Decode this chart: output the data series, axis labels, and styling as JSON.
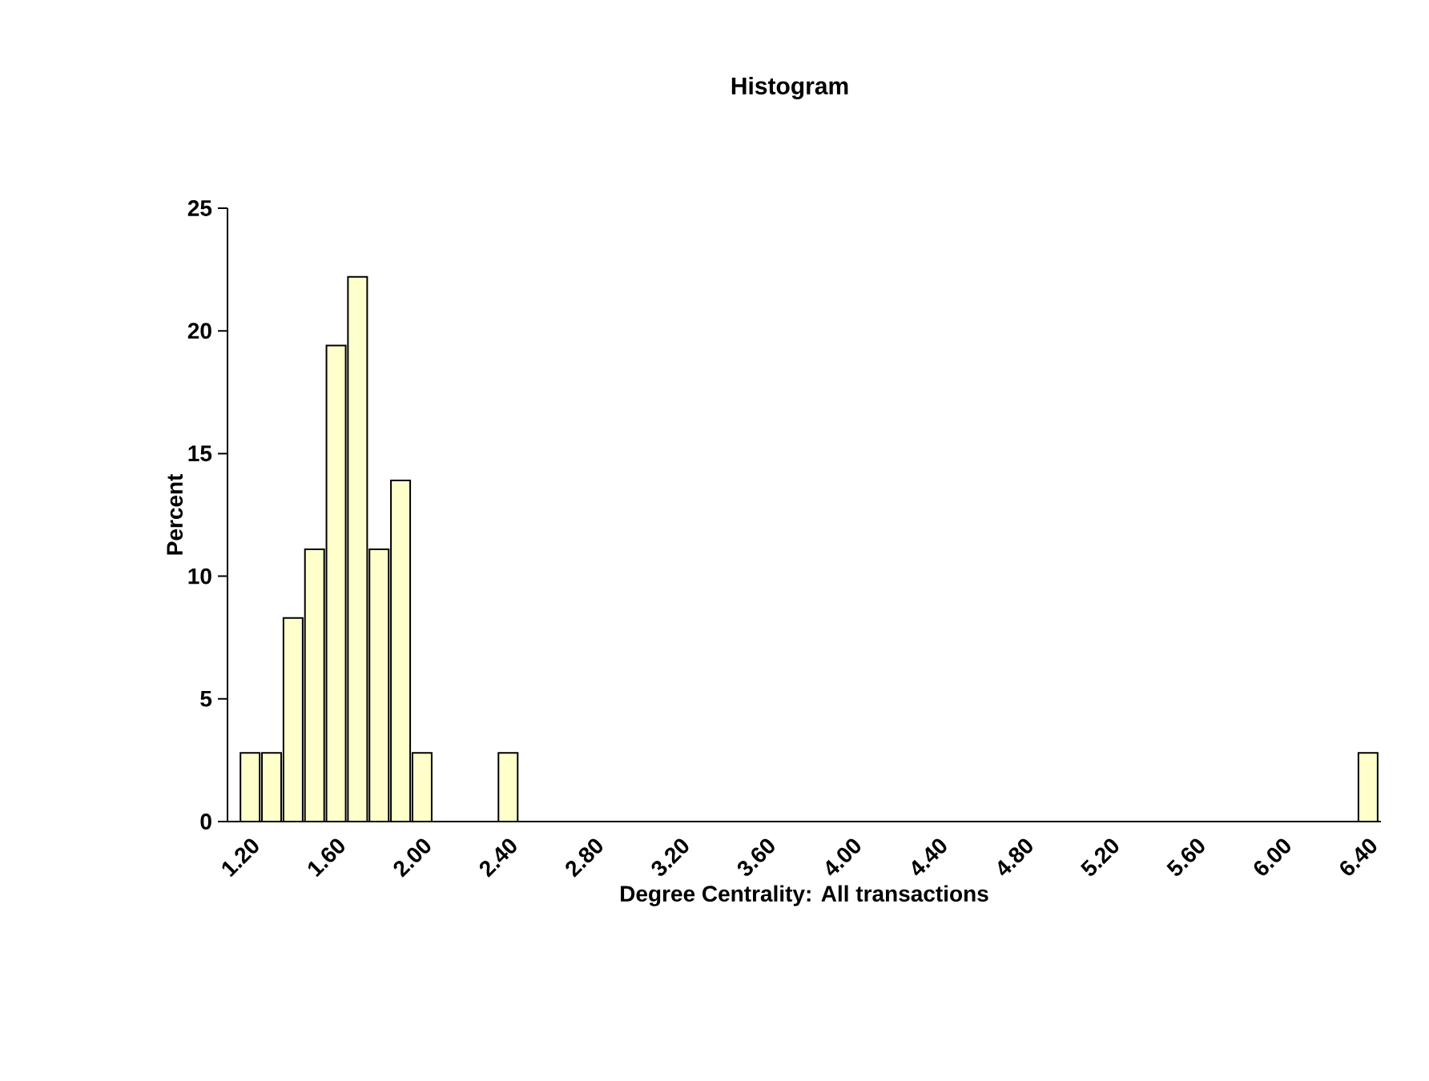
{
  "chart_data": {
    "type": "bar",
    "title": "Histogram",
    "xlabel": "Degree Centrality: All transactions",
    "ylabel": "Percent",
    "categories": [
      "1.20",
      null,
      null,
      null,
      "1.60",
      null,
      null,
      null,
      "2.00",
      null,
      null,
      null,
      "2.40",
      null,
      null,
      null,
      "2.80",
      null,
      null,
      null,
      "3.20",
      null,
      null,
      null,
      "3.60",
      null,
      null,
      null,
      "4.00",
      null,
      null,
      null,
      "4.40",
      null,
      null,
      null,
      "4.80",
      null,
      null,
      null,
      "5.20",
      null,
      null,
      null,
      "5.60",
      null,
      null,
      null,
      "6.00",
      null,
      null,
      null,
      "6.40"
    ],
    "values": [
      2.8,
      2.8,
      8.3,
      11.1,
      19.4,
      22.2,
      11.1,
      13.9,
      2.8,
      0,
      0,
      0,
      2.8,
      0,
      0,
      0,
      0,
      0,
      0,
      0,
      0,
      0,
      0,
      0,
      0,
      0,
      0,
      0,
      0,
      0,
      0,
      0,
      0,
      0,
      0,
      0,
      0,
      0,
      0,
      0,
      0,
      0,
      0,
      0,
      0,
      0,
      0,
      0,
      0,
      0,
      0,
      0,
      2.8
    ],
    "color": "#ffffcc",
    "ylim": [
      0,
      25
    ],
    "yticks": [
      0,
      5,
      10,
      15,
      20,
      25
    ],
    "grid": false
  }
}
